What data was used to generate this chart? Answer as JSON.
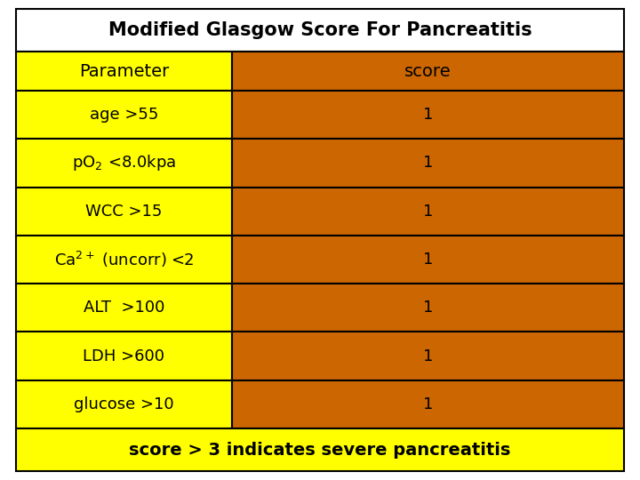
{
  "title": "Modified Glasgow Score For Pancreatitis",
  "col_headers": [
    "Parameter",
    "score"
  ],
  "rows": [
    [
      "age >55",
      "1"
    ],
    [
      "pO2 <8.0kpa",
      "1"
    ],
    [
      "WCC >15",
      "1"
    ],
    [
      "Ca2+ (uncorr) <2",
      "1"
    ],
    [
      "ALT  >100",
      "1"
    ],
    [
      "LDH >600",
      "1"
    ],
    [
      "glucose >10",
      "1"
    ]
  ],
  "footer": "score > 3 indicates severe pancreatitis",
  "title_bg": "#ffffff",
  "col1_bg": "#ffff00",
  "col2_bg": "#cc6600",
  "footer_bg": "#ffff00",
  "title_fontsize": 15,
  "header_fontsize": 14,
  "row_fontsize": 13,
  "footer_fontsize": 14,
  "border_color": "#000000",
  "border_lw": 1.5,
  "text_color": "#000000",
  "fig_bg": "#ffffff"
}
